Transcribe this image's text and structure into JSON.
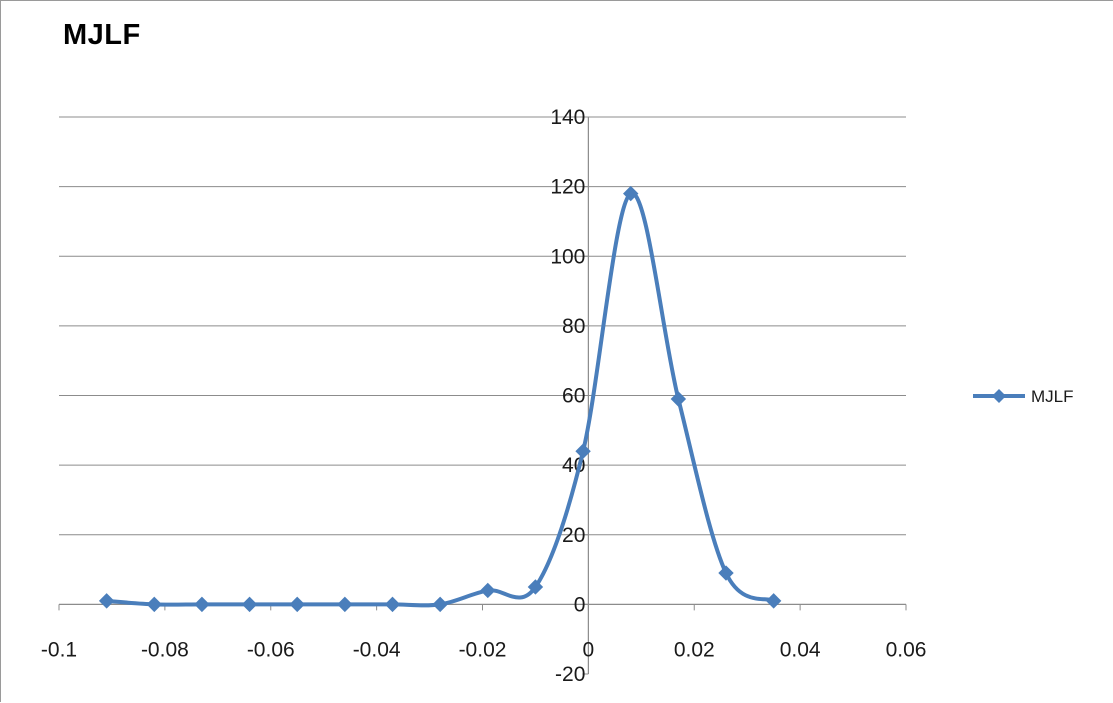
{
  "chart_data": {
    "type": "line",
    "title": "MJLF",
    "xlabel": "",
    "ylabel": "",
    "xlim": [
      -0.1,
      0.06
    ],
    "ylim": [
      -20,
      140
    ],
    "x_ticks": [
      -0.1,
      -0.08,
      -0.06,
      -0.04,
      -0.02,
      0,
      0.02,
      0.04,
      0.06
    ],
    "x_tick_labels": [
      "-0.1",
      "-0.08",
      "-0.06",
      "-0.04",
      "-0.02",
      "0",
      "0.02",
      "0.04",
      "0.06"
    ],
    "y_ticks": [
      -20,
      0,
      20,
      40,
      60,
      80,
      100,
      120,
      140
    ],
    "y_tick_labels": [
      "-20",
      "0",
      "20",
      "40",
      "60",
      "80",
      "100",
      "120",
      "140"
    ],
    "grid": true,
    "smooth": true,
    "legend": {
      "position": "right",
      "entries": [
        "MJLF"
      ]
    },
    "series": [
      {
        "name": "MJLF",
        "color": "#4a7ebb",
        "marker": "diamond",
        "x": [
          -0.091,
          -0.082,
          -0.073,
          -0.064,
          -0.055,
          -0.046,
          -0.037,
          -0.028,
          -0.019,
          -0.01,
          -0.001,
          0.008,
          0.017,
          0.026,
          0.035
        ],
        "y": [
          1,
          0,
          0,
          0,
          0,
          0,
          0,
          0,
          4,
          5,
          44,
          118,
          59,
          9,
          1
        ]
      }
    ]
  }
}
